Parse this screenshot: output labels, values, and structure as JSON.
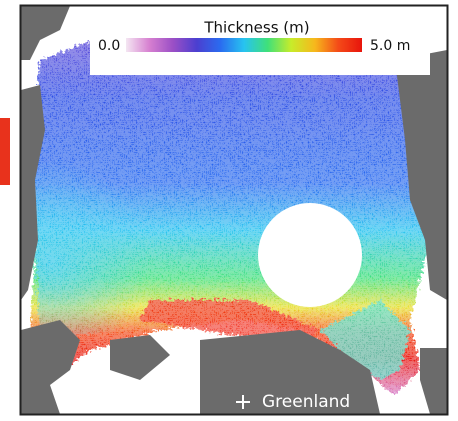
{
  "legend": {
    "title": "Thickness (m)",
    "min_label": "0.0",
    "max_label": "5.0 m",
    "colors": [
      "#f4e6f2",
      "#d67fd0",
      "#9a4fc6",
      "#4b3fd0",
      "#2a6cf0",
      "#27c3f0",
      "#3fe07a",
      "#c8ec2a",
      "#f7b81c",
      "#f44a18",
      "#e8140c"
    ]
  },
  "map": {
    "label": "Greenland"
  }
}
